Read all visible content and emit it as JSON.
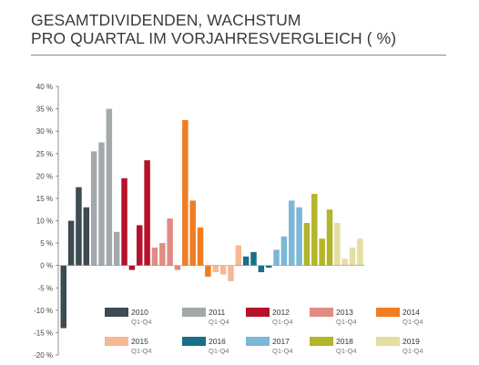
{
  "header": {
    "title_line1": "GESAMTDIVIDENDEN, WACHSTUM",
    "title_line2": "PRO QUARTAL IM VORJAHRESVERGLEICH ( %)"
  },
  "chart_data": {
    "type": "bar",
    "title": "GESAMTDIVIDENDEN, WACHSTUM PRO QUARTAL IM VORJAHRESVERGLEICH ( %)",
    "xlabel": "",
    "ylabel": "",
    "ylim": [
      -20,
      40
    ],
    "yticks": [
      40,
      35,
      30,
      25,
      20,
      15,
      10,
      5,
      0,
      -5,
      -10,
      -15,
      -20
    ],
    "ytick_labels": [
      "40 %",
      "35 %",
      "30 %",
      "25 %",
      "20 %",
      "15 %",
      "10 %",
      "5 %",
      "0 %",
      "-5 %",
      "-10 %",
      "-15 %",
      "-20 %"
    ],
    "grid": false,
    "legend_position": "bottom",
    "series": [
      {
        "name": "2010",
        "sub": "Q1-Q4",
        "color": "#3d4b52",
        "values": [
          -14,
          10,
          17.5,
          13
        ]
      },
      {
        "name": "2011",
        "sub": "Q1-Q4",
        "color": "#a3a9ab",
        "values": [
          25.5,
          27.5,
          35,
          7.5
        ]
      },
      {
        "name": "2012",
        "sub": "Q1-Q4",
        "color": "#b5122a",
        "values": [
          19.5,
          -1,
          9,
          23.5
        ]
      },
      {
        "name": "2013",
        "sub": "Q1-Q4",
        "color": "#e08c84",
        "values": [
          4,
          5,
          10.5,
          -1
        ]
      },
      {
        "name": "2014",
        "sub": "Q1-Q4",
        "color": "#f07d22",
        "values": [
          32.5,
          14.5,
          8.5,
          -2.5
        ]
      },
      {
        "name": "2015",
        "sub": "Q1-Q4",
        "color": "#f7b893",
        "values": [
          -1.5,
          -2,
          -3.5,
          4.5
        ]
      },
      {
        "name": "2016",
        "sub": "Q1-Q4",
        "color": "#1a6e8c",
        "values": [
          2,
          3,
          -1.5,
          -0.5
        ]
      },
      {
        "name": "2017",
        "sub": "Q1-Q4",
        "color": "#7ab8d6",
        "values": [
          3.5,
          6.5,
          14.5,
          13
        ]
      },
      {
        "name": "2018",
        "sub": "Q1-Q4",
        "color": "#b3b52a",
        "values": [
          9.5,
          16,
          6,
          12.5
        ]
      },
      {
        "name": "2019",
        "sub": "Q1-Q4",
        "color": "#e4dea2",
        "values": [
          9.5,
          1.5,
          4,
          6
        ]
      }
    ]
  }
}
